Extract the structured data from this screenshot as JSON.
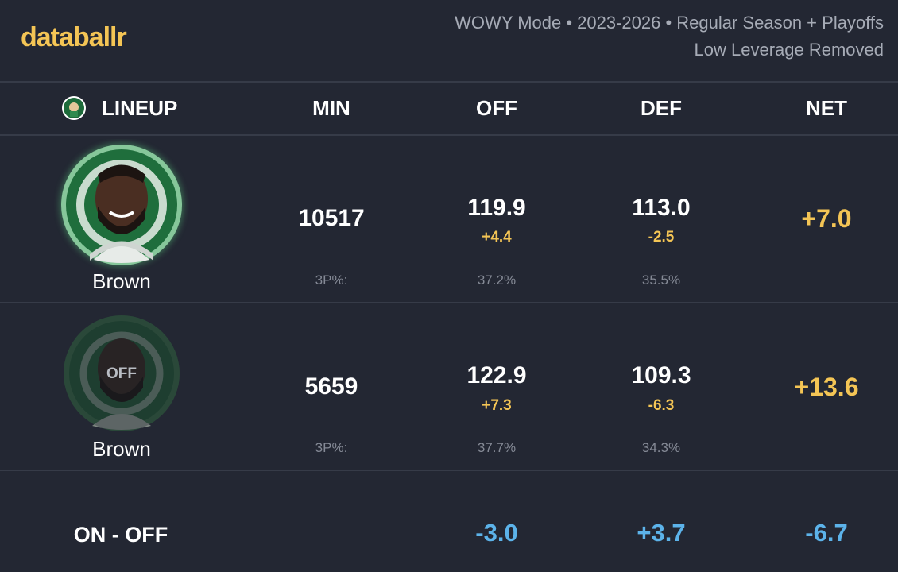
{
  "header": {
    "brand": "databallr",
    "subtitle_line1": "WOWY Mode • 2023-2026 • Regular Season + Playoffs",
    "subtitle_line2": "Low Leverage Removed"
  },
  "table": {
    "columns": [
      "LINEUP",
      "MIN",
      "OFF",
      "DEF",
      "NET"
    ],
    "rows": [
      {
        "player": "Brown",
        "min": "10517",
        "off": "119.9",
        "off_delta": "+4.4",
        "def": "113.0",
        "def_delta": "-2.5",
        "net": "+7.0",
        "stat_label": "3P%:",
        "off_3p": "37.2%",
        "def_3p": "35.5%"
      },
      {
        "badge": "OFF",
        "player": "Brown",
        "min": "5659",
        "off": "122.9",
        "off_delta": "+7.3",
        "def": "109.3",
        "def_delta": "-6.3",
        "net": "+13.6",
        "stat_label": "3P%:",
        "off_3p": "37.7%",
        "def_3p": "34.3%"
      }
    ]
  },
  "footer": {
    "label": "ON - OFF",
    "off": "-3.0",
    "def": "+3.7",
    "net": "-6.7"
  }
}
